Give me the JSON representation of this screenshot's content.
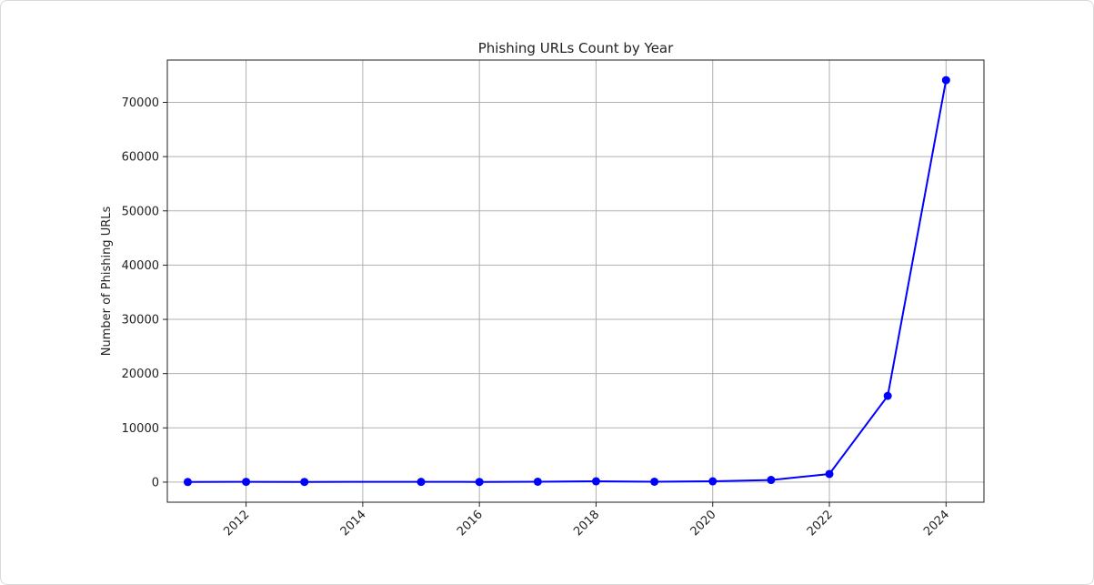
{
  "chart_data": {
    "type": "line",
    "title": "Phishing URLs Count by Year",
    "xlabel": "",
    "ylabel": "Number of Phishing URLs",
    "x": [
      2011,
      2012,
      2013,
      2015,
      2016,
      2017,
      2018,
      2019,
      2020,
      2021,
      2022,
      2023,
      2024
    ],
    "series": [
      {
        "name": "",
        "values": [
          30,
          60,
          40,
          50,
          40,
          80,
          150,
          80,
          150,
          400,
          1500,
          15900,
          74100
        ]
      }
    ],
    "xticks": [
      2012,
      2014,
      2016,
      2018,
      2020,
      2022,
      2024
    ],
    "xtick_labels": [
      "2012",
      "2014",
      "2016",
      "2018",
      "2020",
      "2022",
      "2024"
    ],
    "yticks": [
      0,
      10000,
      20000,
      30000,
      40000,
      50000,
      60000,
      70000
    ],
    "ytick_labels": [
      "0",
      "10000",
      "20000",
      "30000",
      "40000",
      "50000",
      "60000",
      "70000"
    ],
    "xlim": [
      2010.65,
      2024.65
    ],
    "ylim": [
      -3700,
      77800
    ],
    "grid": true,
    "legend": "none",
    "line_color": "#0000ff",
    "marker": "circle"
  }
}
